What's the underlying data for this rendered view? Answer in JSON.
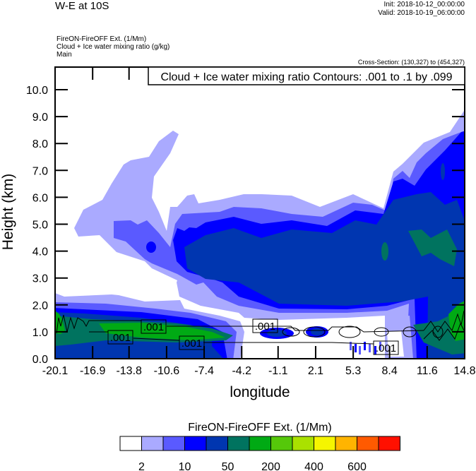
{
  "header": {
    "title": "W-E at 10S",
    "init": "Init: 2018-10-12_00:00:00",
    "valid": "Valid: 2018-10-19_06:00:00",
    "field_lines": [
      "FireON-FireOFF Ext.   (1/Mm)",
      "Cloud + Ice water mixing ratio   (g/kg)",
      "Main"
    ],
    "cross_section": "Cross-Section: (130,327) to (454,327)"
  },
  "chart_data": {
    "type": "heatmap",
    "subtype": "filled-contour cross-section with line contours",
    "title": "Cloud + Ice water mixing ratio Contours: .001 to .1 by .099",
    "xlabel": "longitude",
    "ylabel": "Height (km)",
    "xlim": [
      -20.1,
      14.8
    ],
    "ylim": [
      0,
      10.84
    ],
    "x_ticks": [
      "-20.1",
      "-16.9",
      "-13.8",
      "-10.6",
      "-7.4",
      "-4.2",
      "-1.1",
      "2.1",
      "5.3",
      "8.4",
      "11.6",
      "14.8"
    ],
    "y_ticks": [
      "0.0",
      "1.0",
      "2.0",
      "3.0",
      "4.0",
      "5.0",
      "6.0",
      "7.0",
      "8.0",
      "9.0",
      "10.0"
    ],
    "contour_labels": [
      ".001",
      ".001",
      ".001",
      ".001",
      ".001"
    ],
    "colorbar": {
      "title": "FireON-FireOFF Ext.  (1/Mm)",
      "colors": [
        "#ffffff",
        "#aaaaff",
        "#5a5aff",
        "#0000ff",
        "#0036b0",
        "#00735f",
        "#00aa14",
        "#55c80a",
        "#aae100",
        "#f5f500",
        "#ffb400",
        "#ff5a00",
        "#ff1000"
      ],
      "labels": [
        "2",
        "10",
        "50",
        "200",
        "400",
        "600"
      ]
    }
  }
}
